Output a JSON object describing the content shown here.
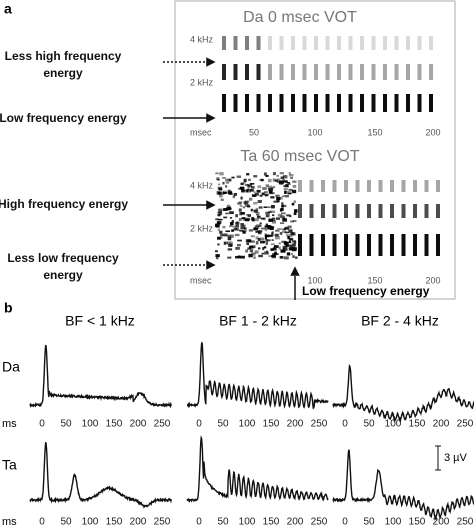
{
  "panel_a": {
    "label": "a",
    "spectrograms": [
      {
        "title": "Da 0 msec VOT",
        "freq_labels": [
          "4 kHz",
          "2 kHz"
        ],
        "time_unit": "msec",
        "time_labels": [
          "50",
          "100",
          "150",
          "200"
        ]
      },
      {
        "title": "Ta 60 msec VOT",
        "freq_labels": [
          "4 kHz",
          "2 kHz"
        ],
        "time_unit": "msec",
        "time_labels": [
          "100",
          "150",
          "200"
        ]
      }
    ],
    "annotations": [
      "Less high frequency energy",
      "Low frequency energy",
      "High frequency energy",
      "Less low frequency energy",
      "Low frequency energy"
    ]
  },
  "panel_b": {
    "label": "b",
    "columns": [
      "BF < 1 kHz",
      "BF 1 - 2 kHz",
      "BF 2 - 4 kHz"
    ],
    "rows": [
      "Da",
      "Ta"
    ],
    "time_unit": "ms",
    "time_labels": [
      "0",
      "50",
      "100",
      "150",
      "200",
      "250"
    ],
    "scale_bar": "3 µV"
  }
}
